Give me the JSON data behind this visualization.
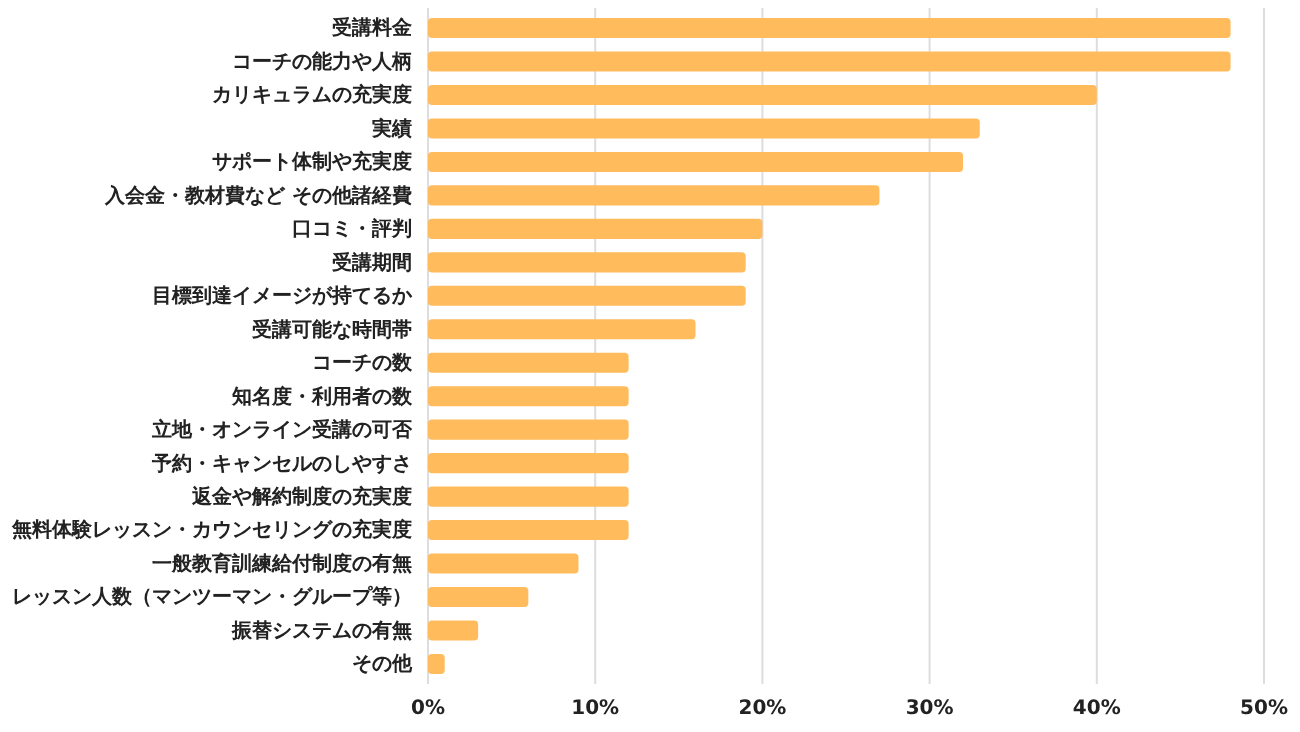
{
  "chart_data": {
    "type": "bar",
    "orientation": "horizontal",
    "categories": [
      "受講料金",
      "コーチの能力や人柄",
      "カリキュラムの充実度",
      "実績",
      "サポート体制や充実度",
      "入会金・教材費など その他諸経費",
      "口コミ・評判",
      "受講期間",
      "目標到達イメージが持てるか",
      "受講可能な時間帯",
      "コーチの数",
      "知名度・利用者の数",
      "立地・オンライン受講の可否",
      "予約・キャンセルのしやすさ",
      "返金や解約制度の充実度",
      "無料体験レッスン・カウンセリングの充実度",
      "一般教育訓練給付制度の有無",
      "レッスン人数（マンツーマン・グループ等）",
      "振替システムの有無",
      "その他"
    ],
    "values": [
      48,
      48,
      40,
      33,
      32,
      27,
      20,
      19,
      19,
      16,
      12,
      12,
      12,
      12,
      12,
      12,
      9,
      6,
      3,
      1
    ],
    "color": "#ffbb5c",
    "xlim": [
      0,
      50
    ],
    "xticks": [
      {
        "value": 0,
        "label": "0%"
      },
      {
        "value": 10,
        "label": "10%"
      },
      {
        "value": 20,
        "label": "20%"
      },
      {
        "value": 30,
        "label": "30%"
      },
      {
        "value": 40,
        "label": "40%"
      },
      {
        "value": 50,
        "label": "50%"
      }
    ],
    "grid": "x"
  }
}
